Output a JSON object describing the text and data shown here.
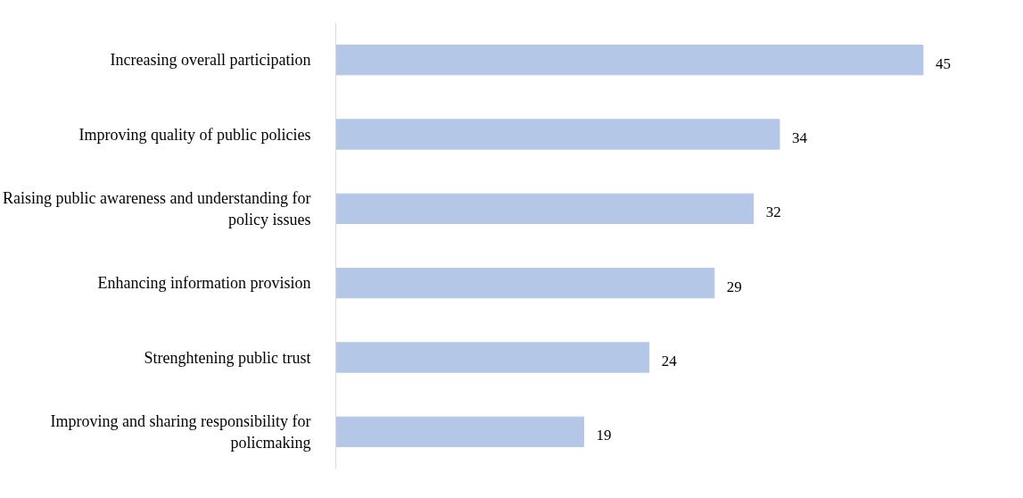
{
  "chart_data": {
    "type": "bar",
    "orientation": "horizontal",
    "categories": [
      "Increasing overall participation",
      "Improving quality of public policies",
      "Raising public awareness and understanding for policy issues",
      "Enhancing information provision",
      "Strenghtening public trust",
      "Improving and sharing responsibility for policmaking"
    ],
    "values": [
      45,
      34,
      32,
      29,
      24,
      19
    ],
    "color": "#b4c7e7",
    "data_labels": true,
    "grid": false
  }
}
